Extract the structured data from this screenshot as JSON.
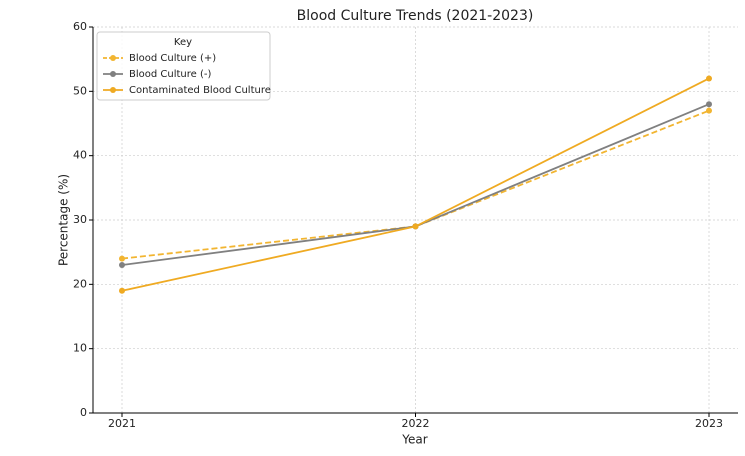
{
  "chart_data": {
    "type": "line",
    "title": "Blood Culture Trends (2021-2023)",
    "x_label": "Year",
    "y_label": "Percentage (%)",
    "categories": [
      "2021",
      "2022",
      "2023"
    ],
    "series": [
      {
        "name": "Blood Culture (+)",
        "color": "#f2b531",
        "linestyle": "dashed",
        "values": [
          24,
          29,
          47
        ]
      },
      {
        "name": "Blood Culture (-)",
        "color": "#808080",
        "linestyle": "solid",
        "values": [
          23,
          29,
          48
        ]
      },
      {
        "name": "Contaminated Blood Culture",
        "color": "#efaa22",
        "linestyle": "solid",
        "values": [
          19,
          29,
          52
        ]
      }
    ],
    "ylim": [
      0,
      60
    ],
    "yticks": [
      0,
      10,
      20,
      30,
      40,
      50,
      60
    ],
    "grid": true,
    "legend_title": "Key",
    "legend_position": "upper-left"
  }
}
